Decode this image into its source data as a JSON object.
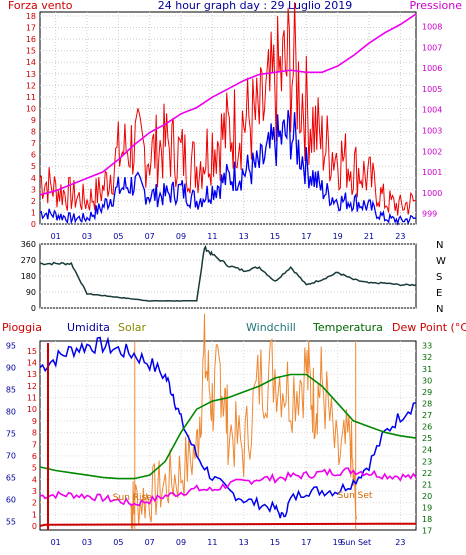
{
  "header": {
    "left_label": "Forza vento",
    "title": "24 hour graph day : 29 Luglio 2019",
    "right_label": "Pressione"
  },
  "bottom_labels": {
    "rain": "Pioggia",
    "humidity": "Umidita",
    "solar": "Solar",
    "windchill": "Windchill",
    "temperature": "Temperatura",
    "dewpoint": "Dew Point (°C)",
    "sunrise": "Sun Rise",
    "sunset": "Sun Set",
    "sunset_tick": "Sun Set"
  },
  "colors": {
    "axis_left_red": "#cc0000",
    "axis_right_magenta": "#cc00cc",
    "wind_gust": "#ee0000",
    "wind_avg": "#0000ee",
    "pressure": "#ee00ee",
    "direction": "#1a3a3a",
    "humidity": "#0000ee",
    "solar": "#ee8833",
    "temperature": "#008800",
    "dewpoint": "#ee00ee",
    "windchill": "#227777",
    "rain": "#cc0000",
    "label_blue": "#000099",
    "label_green": "#006600",
    "label_olive": "#888800",
    "label_teal": "#227777"
  },
  "chart_data": [
    {
      "type": "line",
      "name": "wind-pressure",
      "x_ticks": [
        "01",
        "03",
        "05",
        "07",
        "09",
        "11",
        "13",
        "15",
        "17",
        "19",
        "21",
        "23"
      ],
      "y_left_ticks": [
        "0",
        "1",
        "2",
        "3",
        "4",
        "5",
        "6",
        "7",
        "8",
        "9",
        "10",
        "11",
        "12",
        "13",
        "14",
        "15",
        "16",
        "17",
        "18"
      ],
      "y_left_range": [
        0,
        18
      ],
      "y_right_ticks": [
        "999",
        "1000",
        "1001",
        "1002",
        "1003",
        "1004",
        "1005",
        "1006",
        "1007",
        "1008"
      ],
      "y_right_range": [
        998.5,
        1008.7
      ],
      "grid": true,
      "series": [
        {
          "key": "gust",
          "x": [
            0,
            1,
            2,
            3,
            4,
            5,
            6,
            7,
            8,
            9,
            10,
            11,
            12,
            13,
            14,
            15,
            16,
            17,
            18,
            19,
            20,
            21,
            22,
            23,
            24
          ],
          "y": [
            4,
            3,
            2.5,
            2,
            3,
            6,
            7,
            6,
            7,
            6,
            5,
            7,
            8,
            9,
            9,
            12,
            14,
            10,
            7,
            6,
            5,
            4,
            2,
            1.5,
            2
          ]
        },
        {
          "key": "wind",
          "x": [
            0,
            1,
            2,
            3,
            4,
            5,
            6,
            7,
            8,
            9,
            10,
            11,
            12,
            13,
            14,
            15,
            16,
            17,
            18,
            19,
            20,
            21,
            22,
            23,
            24
          ],
          "y": [
            1,
            0.8,
            0.5,
            0.5,
            1.5,
            3,
            3.5,
            2.5,
            2.5,
            3,
            2,
            3,
            4,
            4.5,
            5,
            7,
            8,
            5,
            3,
            2,
            2,
            1.5,
            0.5,
            0.3,
            0.5
          ]
        },
        {
          "key": "pressure",
          "x": [
            0,
            1,
            2,
            3,
            4,
            5,
            6,
            7,
            8,
            9,
            10,
            11,
            12,
            13,
            14,
            15,
            16,
            17,
            18,
            19,
            20,
            21,
            22,
            23,
            24
          ],
          "y": [
            999.9,
            1000.1,
            1000.4,
            1000.7,
            1001.0,
            1001.6,
            1002.3,
            1002.9,
            1003.3,
            1003.8,
            1004.1,
            1004.6,
            1005.0,
            1005.4,
            1005.7,
            1005.8,
            1005.9,
            1005.8,
            1005.8,
            1006.1,
            1006.6,
            1007.2,
            1007.7,
            1008.1,
            1008.6
          ]
        }
      ]
    },
    {
      "type": "line",
      "name": "wind-direction",
      "y_left_ticks": [
        "0",
        "90",
        "180",
        "270",
        "360"
      ],
      "y_range": [
        0,
        360
      ],
      "y_right_ticks": [
        "N",
        "W",
        "S",
        "E",
        "N"
      ],
      "series": [
        {
          "key": "direction",
          "x": [
            0,
            1,
            2,
            3,
            4,
            5,
            6,
            7,
            8,
            9,
            10,
            10.5,
            11,
            12,
            13,
            14,
            15,
            16,
            17,
            18,
            19,
            20,
            21,
            22,
            23,
            24
          ],
          "y": [
            250,
            250,
            250,
            80,
            70,
            60,
            50,
            40,
            40,
            40,
            40,
            340,
            300,
            240,
            210,
            230,
            150,
            230,
            130,
            160,
            200,
            160,
            140,
            140,
            130,
            130
          ]
        }
      ]
    },
    {
      "type": "line",
      "name": "humidity-temperature",
      "x_ticks": [
        "01",
        "03",
        "05",
        "07",
        "09",
        "11",
        "13",
        "15",
        "17",
        "19",
        "Sun Set",
        "23"
      ],
      "y_rain_ticks": [
        "0",
        "1",
        "2",
        "3",
        "4",
        "5",
        "6",
        "7",
        "8",
        "9",
        "10",
        "11",
        "12",
        "13",
        "14",
        "15"
      ],
      "y_rain_range": [
        0,
        15.5
      ],
      "y_humidity_ticks": [
        "55",
        "60",
        "65",
        "70",
        "75",
        "80",
        "85",
        "90",
        "95"
      ],
      "y_humidity_range": [
        54,
        96
      ],
      "y_temp_ticks": [
        "17",
        "18",
        "19",
        "20",
        "21",
        "22",
        "23",
        "24",
        "25",
        "26",
        "27",
        "28",
        "29",
        "30",
        "31",
        "32",
        "33"
      ],
      "y_temp_range": [
        17.4,
        33.4
      ],
      "series": [
        {
          "key": "humidity",
          "axis": "humidity",
          "x": [
            0,
            1,
            2,
            3,
            4,
            5,
            6,
            7,
            8,
            8.5,
            9,
            10,
            11,
            12,
            13,
            14,
            15,
            15.5,
            16,
            17,
            18,
            19,
            20,
            21,
            22,
            23,
            24
          ],
          "y": [
            90,
            92,
            94,
            95,
            95,
            94,
            93,
            91,
            88,
            84,
            78,
            70,
            65,
            62,
            60,
            59,
            58,
            56,
            60,
            62,
            62,
            62,
            64,
            68,
            75,
            79,
            82
          ]
        },
        {
          "key": "temperature",
          "axis": "temp",
          "x": [
            0,
            1,
            2,
            3,
            4,
            5,
            6,
            7,
            8,
            9,
            10,
            11,
            12,
            13,
            14,
            15,
            16,
            17,
            18,
            19,
            20,
            21,
            22,
            23,
            24
          ],
          "y": [
            22.5,
            22.2,
            22,
            21.8,
            21.6,
            21.5,
            21.5,
            21.8,
            23,
            25.5,
            27.5,
            28.2,
            28.5,
            29,
            29.5,
            30.2,
            30.5,
            30.5,
            29.5,
            28,
            26.5,
            26,
            25.5,
            25.2,
            25
          ]
        },
        {
          "key": "dewpoint",
          "axis": "temp",
          "x": [
            0,
            1,
            2,
            3,
            4,
            5,
            6,
            7,
            8,
            9,
            10,
            11,
            12,
            13,
            14,
            15,
            16,
            17,
            18,
            19,
            20,
            21,
            22,
            23,
            24
          ],
          "y": [
            20,
            20.1,
            20.1,
            20,
            19.8,
            19.6,
            19.3,
            19.6,
            20,
            20.3,
            20.6,
            20.5,
            21,
            21.2,
            21.5,
            21.5,
            21.7,
            21.8,
            22,
            22.1,
            22.2,
            22,
            21.8,
            21.7,
            21.6
          ]
        },
        {
          "key": "solar",
          "axis": "temp",
          "x": [
            5.8,
            6,
            7,
            8,
            9,
            10,
            10.5,
            11,
            11.5,
            12,
            13,
            14,
            15,
            16,
            17,
            17.5,
            18,
            19,
            19.8,
            20.2
          ],
          "y": [
            19,
            19.5,
            20,
            21,
            22,
            24,
            32,
            28,
            31,
            26,
            24,
            30,
            31,
            29,
            31,
            28,
            30,
            23,
            25,
            18
          ]
        },
        {
          "key": "rain",
          "axis": "rain",
          "x": [
            0,
            0.3,
            24
          ],
          "y": [
            0,
            0.1,
            0.2
          ]
        }
      ],
      "sunrise_hour": 6.05,
      "sunset_hour": 20.15
    }
  ]
}
